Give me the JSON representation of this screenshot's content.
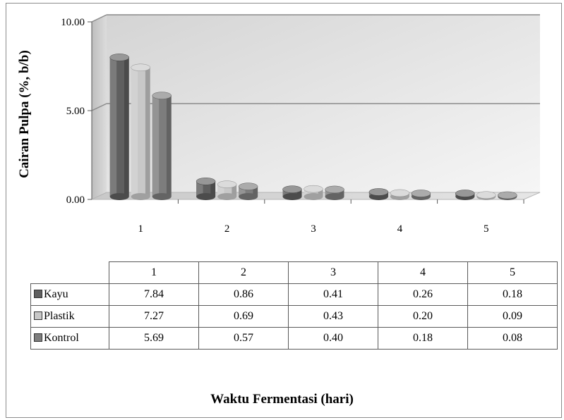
{
  "chart_data": {
    "type": "bar",
    "categories": [
      "1",
      "2",
      "3",
      "4",
      "5"
    ],
    "series": [
      {
        "name": "Kayu",
        "values": [
          7.84,
          0.86,
          0.41,
          0.26,
          0.18
        ],
        "color": "#5f5f5f"
      },
      {
        "name": "Plastik",
        "values": [
          7.27,
          0.69,
          0.43,
          0.2,
          0.09
        ],
        "color": "#c8c8c8"
      },
      {
        "name": "Kontrol",
        "values": [
          5.69,
          0.57,
          0.4,
          0.18,
          0.08
        ],
        "color": "#7d7d7d"
      }
    ],
    "ylabel": "Cairan Pulpa (%, b/b)",
    "xlabel": "Waktu Fermentasi (hari)",
    "ylim": [
      0,
      10
    ],
    "yticks": [
      "0.00",
      "5.00",
      "10.00"
    ],
    "grid": true,
    "legend": "data table below chart",
    "table": {
      "headers": [
        "1",
        "2",
        "3",
        "4",
        "5"
      ],
      "rows": [
        {
          "label": "Kayu",
          "values": [
            "7.84",
            "0.86",
            "0.41",
            "0.26",
            "0.18"
          ]
        },
        {
          "label": "Plastik",
          "values": [
            "7.27",
            "0.69",
            "0.43",
            "0.20",
            "0.09"
          ]
        },
        {
          "label": "Kontrol",
          "values": [
            "5.69",
            "0.57",
            "0.40",
            "0.18",
            "0.08"
          ]
        }
      ]
    }
  }
}
